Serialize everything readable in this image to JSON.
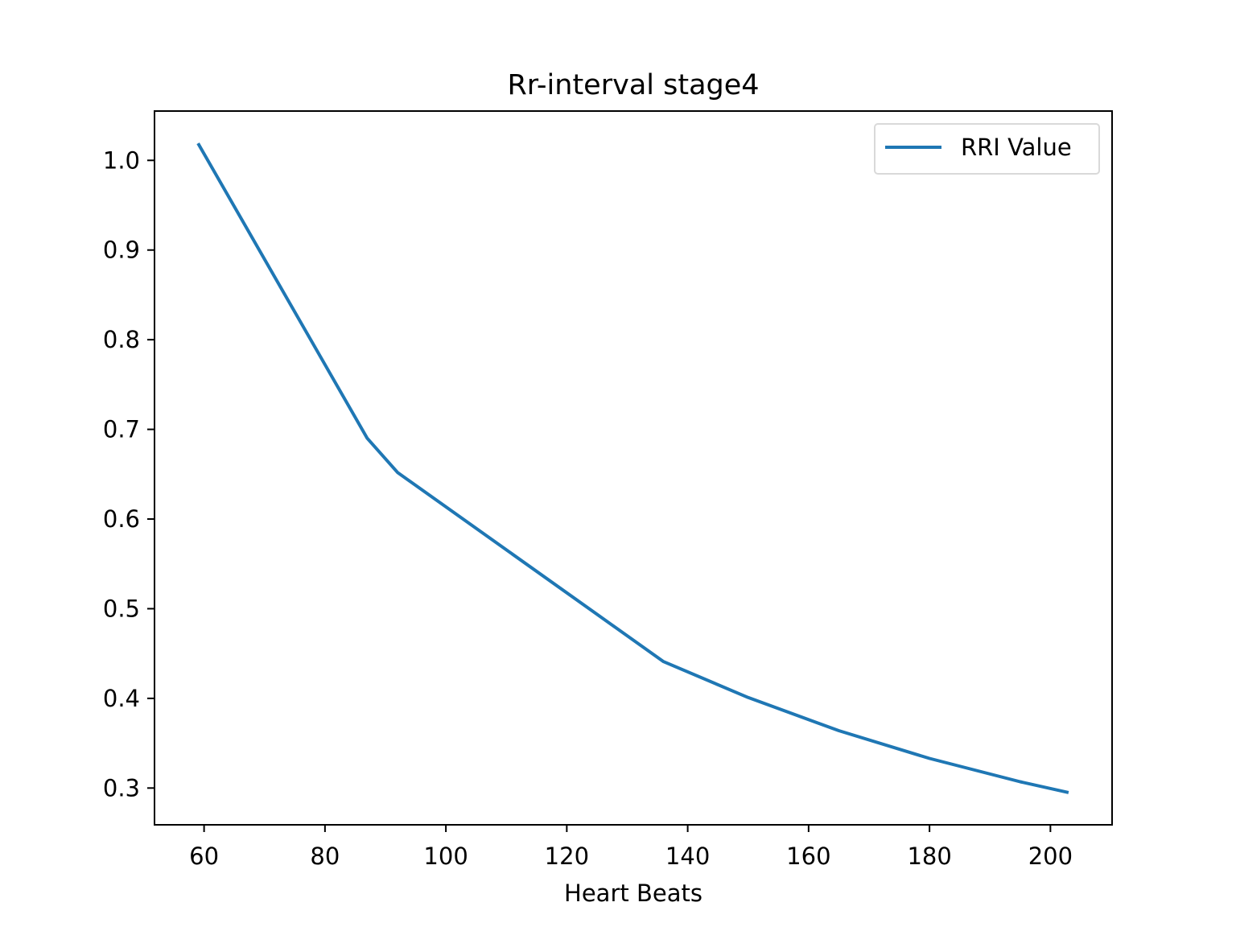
{
  "chart_data": {
    "type": "line",
    "title": "Rr-interval stage4",
    "xlabel": "Heart Beats",
    "ylabel": "",
    "xlim": [
      51.8,
      210.2
    ],
    "ylim": [
      0.259,
      1.055
    ],
    "xticks": [
      60,
      80,
      100,
      120,
      140,
      160,
      180,
      200
    ],
    "xtick_labels": [
      "60",
      "80",
      "100",
      "120",
      "140",
      "160",
      "180",
      "200"
    ],
    "yticks": [
      0.3,
      0.4,
      0.5,
      0.6,
      0.7,
      0.8,
      0.9,
      1.0
    ],
    "ytick_labels": [
      "0.3",
      "0.4",
      "0.5",
      "0.6",
      "0.7",
      "0.8",
      "0.9",
      "1.0"
    ],
    "grid": false,
    "legend_position": "top-right",
    "series": [
      {
        "name": "RRI Value",
        "color": "#1f77b4",
        "x": [
          59,
          87,
          92,
          136,
          150,
          165,
          180,
          195,
          203
        ],
        "y": [
          1.019,
          0.69,
          0.652,
          0.441,
          0.401,
          0.364,
          0.333,
          0.307,
          0.295
        ]
      }
    ]
  }
}
